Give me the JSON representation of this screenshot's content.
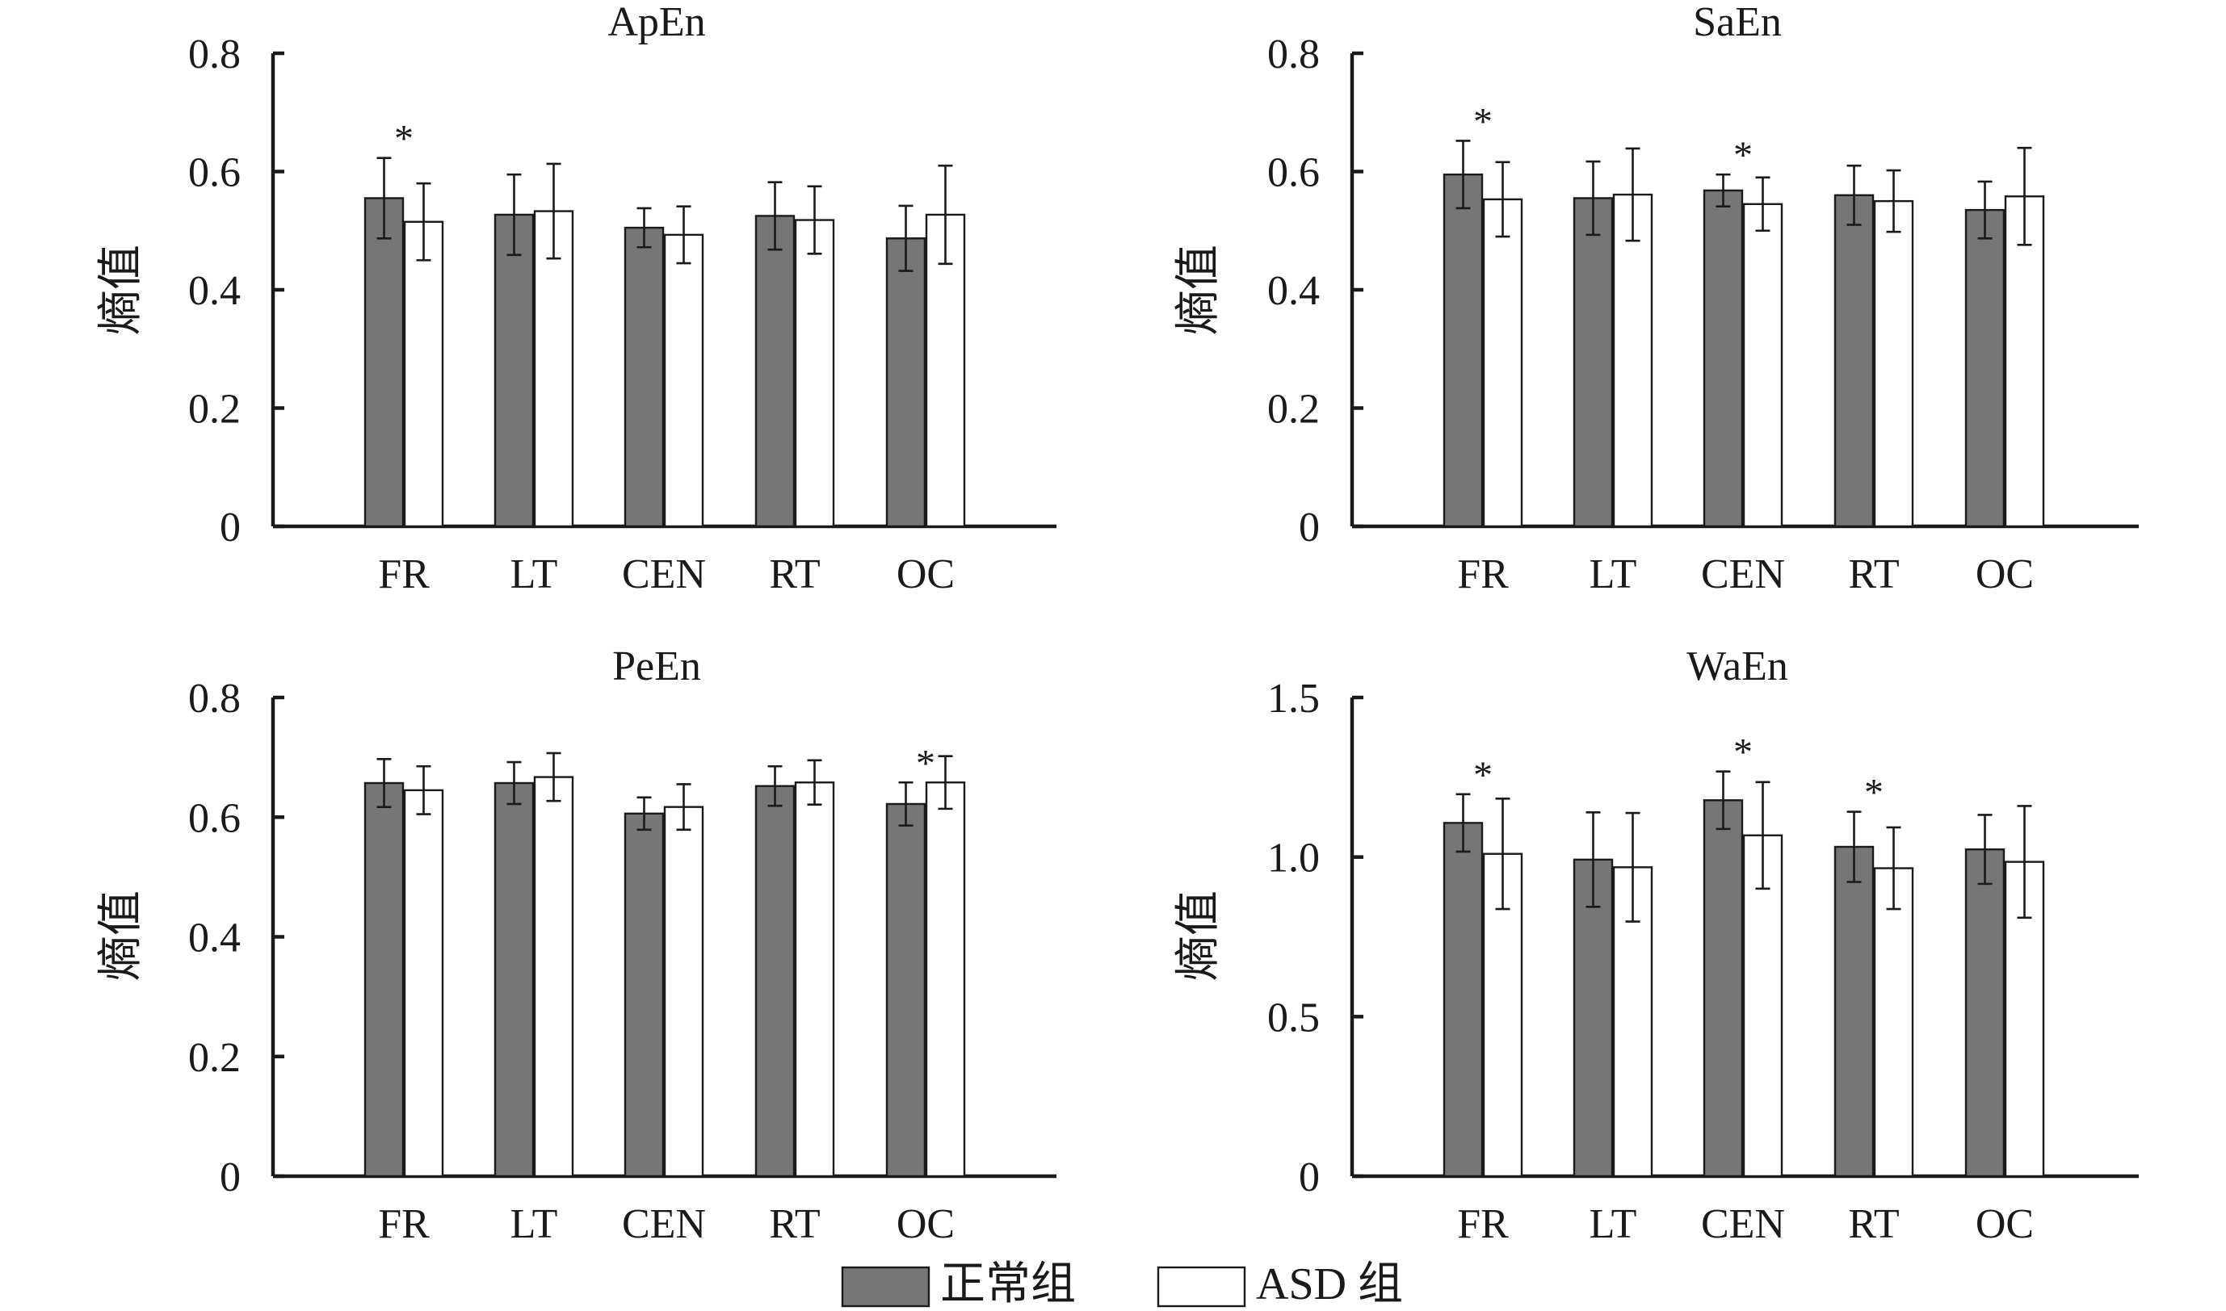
{
  "colors": {
    "normal": "#767676",
    "asd": "#ffffff",
    "ink": "#1a1a1a"
  },
  "legend": {
    "normal_label": "正常组",
    "asd_label": "ASD 组"
  },
  "chart_data": [
    {
      "type": "bar",
      "title": "ApEn",
      "ylabel": "熵值",
      "ylim": [
        0,
        0.8
      ],
      "yticks": [
        "0",
        "0.2",
        "0.4",
        "0.6",
        "0.8"
      ],
      "ytick_values": [
        0,
        0.2,
        0.4,
        0.6,
        0.8
      ],
      "categories": [
        "FR",
        "LT",
        "CEN",
        "RT",
        "OC"
      ],
      "series": [
        {
          "name": "正常组",
          "values": [
            0.555,
            0.527,
            0.505,
            0.525,
            0.487
          ],
          "errors": [
            0.068,
            0.068,
            0.033,
            0.057,
            0.055
          ]
        },
        {
          "name": "ASD 组",
          "values": [
            0.515,
            0.533,
            0.493,
            0.518,
            0.527
          ],
          "errors": [
            0.065,
            0.08,
            0.048,
            0.057,
            0.083
          ]
        }
      ],
      "significance": [
        {
          "category": "FR",
          "label": "*"
        }
      ]
    },
    {
      "type": "bar",
      "title": "SaEn",
      "ylabel": "熵值",
      "ylim": [
        0,
        0.8
      ],
      "yticks": [
        "0",
        "0.2",
        "0.4",
        "0.6",
        "0.8"
      ],
      "ytick_values": [
        0,
        0.2,
        0.4,
        0.6,
        0.8
      ],
      "categories": [
        "FR",
        "LT",
        "CEN",
        "RT",
        "OC"
      ],
      "series": [
        {
          "name": "正常组",
          "values": [
            0.595,
            0.555,
            0.568,
            0.56,
            0.535
          ],
          "errors": [
            0.057,
            0.062,
            0.027,
            0.05,
            0.048
          ]
        },
        {
          "name": "ASD 组",
          "values": [
            0.553,
            0.561,
            0.545,
            0.55,
            0.558
          ],
          "errors": [
            0.063,
            0.078,
            0.045,
            0.052,
            0.082
          ]
        }
      ],
      "significance": [
        {
          "category": "FR",
          "label": "*"
        },
        {
          "category": "CEN",
          "label": "*"
        }
      ]
    },
    {
      "type": "bar",
      "title": "PeEn",
      "ylabel": "熵值",
      "ylim": [
        0,
        0.8
      ],
      "yticks": [
        "0",
        "0.2",
        "0.4",
        "0.6",
        "0.8"
      ],
      "ytick_values": [
        0,
        0.2,
        0.4,
        0.6,
        0.8
      ],
      "categories": [
        "FR",
        "LT",
        "CEN",
        "RT",
        "OC"
      ],
      "series": [
        {
          "name": "正常组",
          "values": [
            0.657,
            0.657,
            0.606,
            0.652,
            0.622
          ],
          "errors": [
            0.04,
            0.035,
            0.027,
            0.033,
            0.036
          ]
        },
        {
          "name": "ASD 组",
          "values": [
            0.645,
            0.667,
            0.617,
            0.658,
            0.658
          ],
          "errors": [
            0.04,
            0.04,
            0.038,
            0.037,
            0.044
          ]
        }
      ],
      "significance": [
        {
          "category": "OC",
          "label": "*"
        }
      ]
    },
    {
      "type": "bar",
      "title": "WaEn",
      "ylabel": "熵值",
      "ylim": [
        0,
        1.5
      ],
      "yticks": [
        "0",
        "0.5",
        "1.0",
        "1.5"
      ],
      "ytick_values": [
        0,
        0.5,
        1.0,
        1.5
      ],
      "categories": [
        "FR",
        "LT",
        "CEN",
        "RT",
        "OC"
      ],
      "series": [
        {
          "name": "正常组",
          "values": [
            1.107,
            0.992,
            1.178,
            1.032,
            1.024
          ],
          "errors": [
            0.09,
            0.148,
            0.09,
            0.11,
            0.108
          ]
        },
        {
          "name": "ASD 组",
          "values": [
            1.01,
            0.968,
            1.068,
            0.965,
            0.985
          ],
          "errors": [
            0.173,
            0.17,
            0.167,
            0.128,
            0.175
          ]
        }
      ],
      "significance": [
        {
          "category": "FR",
          "label": "*"
        },
        {
          "category": "CEN",
          "label": "*"
        },
        {
          "category": "RT",
          "label": "*"
        }
      ]
    }
  ]
}
